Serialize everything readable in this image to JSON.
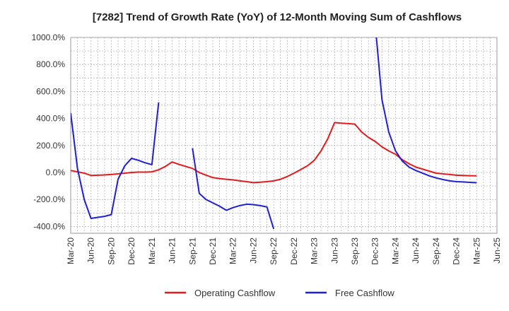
{
  "chart_data": {
    "type": "line",
    "title": "[7282]  Trend of Growth Rate (YoY) of 12-Month Moving Sum of Cashflows",
    "xlabel": "",
    "ylabel": "",
    "ylim": [
      -450,
      1000
    ],
    "y_ticks": [
      1000,
      800,
      600,
      400,
      200,
      0,
      -200,
      -400
    ],
    "y_tick_labels": [
      "1000.0%",
      "800.0%",
      "600.0%",
      "400.0%",
      "200.0%",
      "0.0%",
      "-200.0%",
      "-400.0%"
    ],
    "x_range": [
      "2020-03",
      "2025-06"
    ],
    "x_ticks": [
      "2020-03",
      "2020-06",
      "2020-09",
      "2020-12",
      "2021-03",
      "2021-06",
      "2021-09",
      "2021-12",
      "2022-03",
      "2022-06",
      "2022-09",
      "2022-12",
      "2023-03",
      "2023-06",
      "2023-09",
      "2023-12",
      "2024-03",
      "2024-06",
      "2024-09",
      "2024-12",
      "2025-03",
      "2025-06"
    ],
    "x_tick_labels": [
      "Mar-20",
      "Jun-20",
      "Sep-20",
      "Dec-20",
      "Mar-21",
      "Jun-21",
      "Sep-21",
      "Dec-21",
      "Mar-22",
      "Jun-22",
      "Sep-22",
      "Dec-22",
      "Mar-23",
      "Jun-23",
      "Sep-23",
      "Dec-23",
      "Mar-24",
      "Jun-24",
      "Sep-24",
      "Dec-24",
      "Mar-25",
      "Jun-25"
    ],
    "grid": true,
    "legend_position": "bottom",
    "series": [
      {
        "name": "Operating Cashflow",
        "color": "#e31a1c",
        "points": [
          [
            "2020-03",
            15
          ],
          [
            "2020-04",
            5
          ],
          [
            "2020-05",
            -5
          ],
          [
            "2020-06",
            -22
          ],
          [
            "2020-07",
            -20
          ],
          [
            "2020-08",
            -18
          ],
          [
            "2020-09",
            -15
          ],
          [
            "2020-10",
            -10
          ],
          [
            "2020-11",
            -5
          ],
          [
            "2020-12",
            0
          ],
          [
            "2021-01",
            3
          ],
          [
            "2021-02",
            3
          ],
          [
            "2021-03",
            5
          ],
          [
            "2021-04",
            20
          ],
          [
            "2021-05",
            45
          ],
          [
            "2021-06",
            78
          ],
          [
            "2021-07",
            60
          ],
          [
            "2021-08",
            45
          ],
          [
            "2021-09",
            30
          ],
          [
            "2021-10",
            0
          ],
          [
            "2021-11",
            -20
          ],
          [
            "2021-12",
            -38
          ],
          [
            "2022-01",
            -45
          ],
          [
            "2022-02",
            -50
          ],
          [
            "2022-03",
            -55
          ],
          [
            "2022-04",
            -62
          ],
          [
            "2022-05",
            -68
          ],
          [
            "2022-06",
            -75
          ],
          [
            "2022-07",
            -72
          ],
          [
            "2022-08",
            -68
          ],
          [
            "2022-09",
            -62
          ],
          [
            "2022-10",
            -50
          ],
          [
            "2022-11",
            -30
          ],
          [
            "2022-12",
            -5
          ],
          [
            "2023-01",
            22
          ],
          [
            "2023-02",
            50
          ],
          [
            "2023-03",
            90
          ],
          [
            "2023-04",
            160
          ],
          [
            "2023-05",
            250
          ],
          [
            "2023-06",
            370
          ],
          [
            "2023-07",
            365
          ],
          [
            "2023-08",
            362
          ],
          [
            "2023-09",
            358
          ],
          [
            "2023-10",
            300
          ],
          [
            "2023-11",
            260
          ],
          [
            "2023-12",
            230
          ],
          [
            "2024-01",
            190
          ],
          [
            "2024-02",
            160
          ],
          [
            "2024-03",
            135
          ],
          [
            "2024-04",
            95
          ],
          [
            "2024-05",
            65
          ],
          [
            "2024-06",
            40
          ],
          [
            "2024-07",
            25
          ],
          [
            "2024-08",
            10
          ],
          [
            "2024-09",
            -5
          ],
          [
            "2024-10",
            -10
          ],
          [
            "2024-11",
            -15
          ],
          [
            "2024-12",
            -20
          ],
          [
            "2025-01",
            -22
          ],
          [
            "2025-02",
            -24
          ],
          [
            "2025-03",
            -25
          ]
        ]
      },
      {
        "name": "Free Cashflow",
        "color": "#1f1fd6",
        "segments": [
          [
            [
              "2020-03",
              440
            ],
            [
              "2020-04",
              30
            ],
            [
              "2020-05",
              -200
            ],
            [
              "2020-06",
              -340
            ],
            [
              "2020-07",
              -332
            ],
            [
              "2020-08",
              -325
            ],
            [
              "2020-09",
              -312
            ],
            [
              "2020-10",
              -50
            ],
            [
              "2020-11",
              50
            ],
            [
              "2020-12",
              105
            ],
            [
              "2021-01",
              90
            ],
            [
              "2021-02",
              72
            ],
            [
              "2021-03",
              58
            ],
            [
              "2021-04",
              520
            ]
          ],
          [
            [
              "2021-09",
              180
            ],
            [
              "2021-10",
              -155
            ],
            [
              "2021-11",
              -200
            ],
            [
              "2021-12",
              -225
            ],
            [
              "2022-01",
              -250
            ],
            [
              "2022-02",
              -280
            ],
            [
              "2022-03",
              -260
            ],
            [
              "2022-04",
              -245
            ],
            [
              "2022-05",
              -235
            ],
            [
              "2022-06",
              -238
            ],
            [
              "2022-07",
              -245
            ],
            [
              "2022-08",
              -255
            ],
            [
              "2022-09",
              -418
            ]
          ],
          [
            [
              "2023-12",
              1100
            ],
            [
              "2024-01",
              540
            ],
            [
              "2024-02",
              300
            ],
            [
              "2024-03",
              160
            ],
            [
              "2024-04",
              85
            ],
            [
              "2024-05",
              40
            ],
            [
              "2024-06",
              15
            ],
            [
              "2024-07",
              -5
            ],
            [
              "2024-08",
              -25
            ],
            [
              "2024-09",
              -40
            ],
            [
              "2024-10",
              -52
            ],
            [
              "2024-11",
              -62
            ],
            [
              "2024-12",
              -68
            ],
            [
              "2025-01",
              -70
            ],
            [
              "2025-02",
              -73
            ],
            [
              "2025-03",
              -76
            ]
          ]
        ]
      }
    ]
  }
}
